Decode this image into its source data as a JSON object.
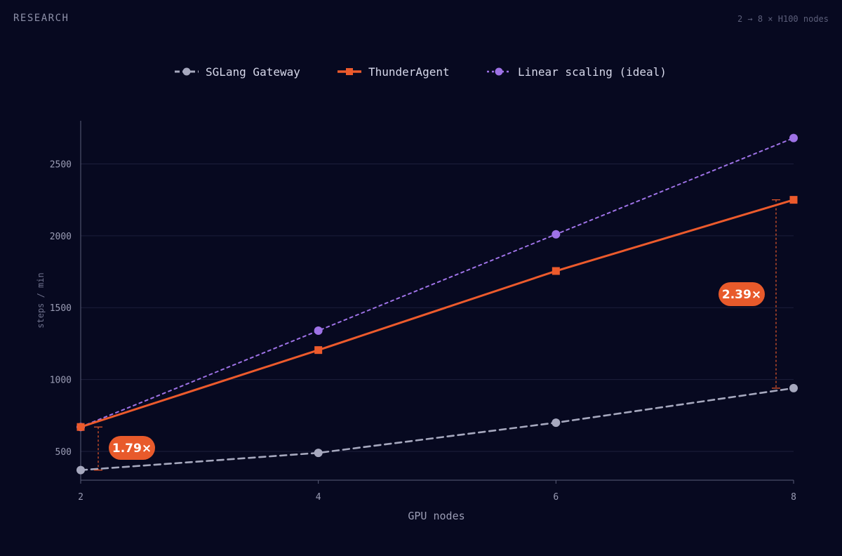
{
  "header": {
    "section": "RESEARCH",
    "context": "2 → 8 × H100 nodes"
  },
  "colors": {
    "background": "#070920",
    "grid": "#1d1f3b",
    "axis": "#5a5d78",
    "tick_text": "#9a9cb4",
    "sglang": "#a6a8be",
    "thunder": "#ec5a2c",
    "linear": "#9e72e6",
    "badge_bg": "#e85a2b",
    "badge_text": "#ffffff"
  },
  "chart_data": {
    "type": "line",
    "xlabel": "GPU nodes",
    "ylabel": "steps / min",
    "x": [
      2,
      4,
      6,
      8
    ],
    "xticks": [
      "2",
      "4",
      "6",
      "8"
    ],
    "xlim": [
      2,
      8
    ],
    "yticks": [
      500,
      1000,
      1500,
      2000,
      2500
    ],
    "ylim": [
      300,
      2800
    ],
    "grid": true,
    "legend": "top-center",
    "series": [
      {
        "name": "SGLang Gateway",
        "values": [
          370,
          490,
          700,
          940
        ],
        "style": "dashed",
        "marker": "circle",
        "color": "#a6a8be"
      },
      {
        "name": "ThunderAgent",
        "values": [
          670,
          1205,
          1755,
          2250
        ],
        "style": "solid",
        "marker": "square",
        "color": "#ec5a2c"
      },
      {
        "name": "Linear scaling (ideal)",
        "values": [
          670,
          1340,
          2010,
          2680
        ],
        "style": "dotted",
        "marker": "circle",
        "color": "#9e72e6"
      }
    ],
    "annotations": [
      {
        "label": "1.79×",
        "x": 2,
        "from": 370,
        "to": 670
      },
      {
        "label": "2.39×",
        "x": 8,
        "from": 940,
        "to": 2250
      }
    ]
  }
}
